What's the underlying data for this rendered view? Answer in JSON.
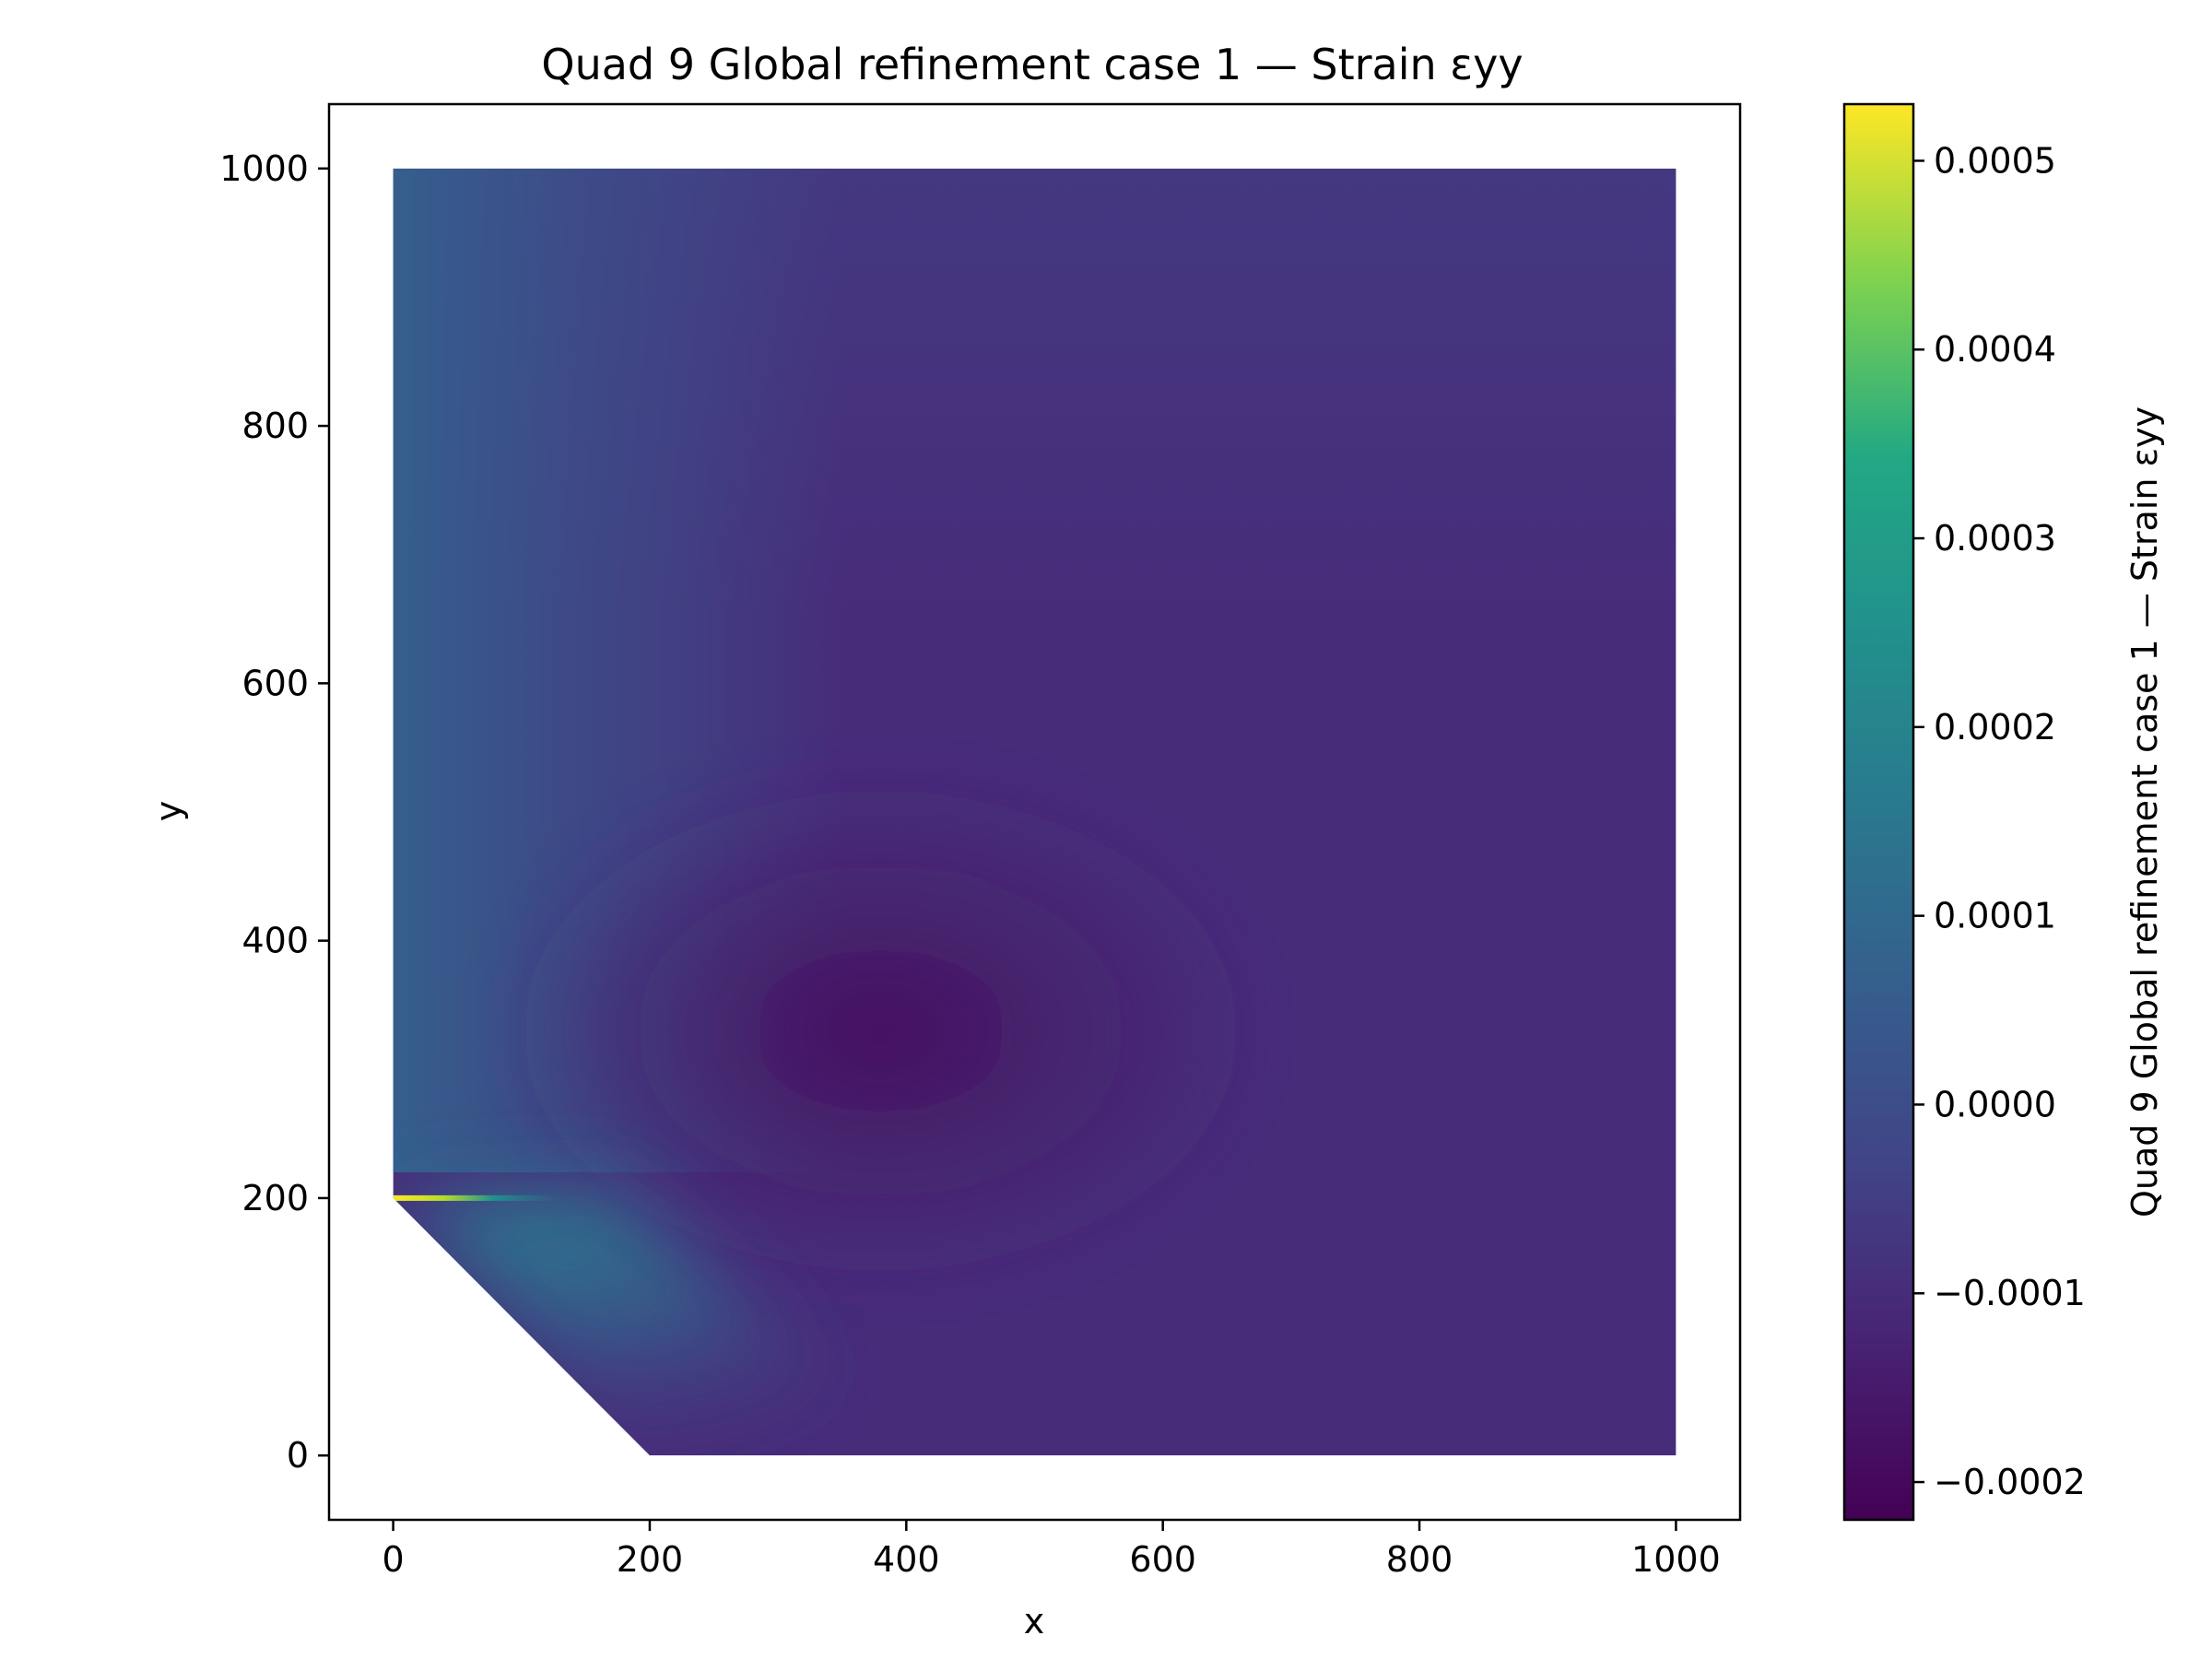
{
  "chart_data": {
    "type": "heatmap",
    "title": "Quad 9 Global refinement case 1 — Strain εyy",
    "xlabel": "x",
    "ylabel": "y",
    "xlim": [
      -50,
      1050
    ],
    "ylim": [
      -50,
      1050
    ],
    "x_ticks": [
      0,
      200,
      400,
      600,
      800,
      1000
    ],
    "y_ticks": [
      0,
      200,
      400,
      600,
      800,
      1000
    ],
    "x_tick_labels": [
      "0",
      "200",
      "400",
      "600",
      "800",
      "1000"
    ],
    "y_tick_labels": [
      "0",
      "200",
      "400",
      "600",
      "800",
      "1000"
    ],
    "domain_polygon": [
      [
        0,
        200
      ],
      [
        200,
        0
      ],
      [
        1000,
        0
      ],
      [
        1000,
        1000
      ],
      [
        0,
        1000
      ]
    ],
    "crack": {
      "x_start": 0,
      "x_end": 130,
      "y": 200
    },
    "colormap": "viridis",
    "colorbar": {
      "label": "Quad 9 Global refinement case 1 — Strain εyy",
      "range": [
        -0.00022,
        0.00053
      ],
      "ticks": [
        0.0005,
        0.0004,
        0.0003,
        0.0002,
        0.0001,
        0.0,
        -0.0001,
        -0.0002
      ],
      "tick_labels": [
        "0.0005",
        "0.0004",
        "0.0003",
        "0.0002",
        "0.0001",
        "0.0000",
        "−0.0001",
        "−0.0002"
      ]
    },
    "field_samples": [
      {
        "x": 0,
        "y": 900,
        "value": -3e-05
      },
      {
        "x": 0,
        "y": 500,
        "value": -3e-05
      },
      {
        "x": 50,
        "y": 100,
        "value": 7e-05
      },
      {
        "x": 150,
        "y": 220,
        "value": -0.0002
      },
      {
        "x": 300,
        "y": 280,
        "value": -0.0002
      },
      {
        "x": 450,
        "y": 400,
        "value": -0.00018
      },
      {
        "x": 500,
        "y": 800,
        "value": -0.00012
      },
      {
        "x": 900,
        "y": 500,
        "value": -0.00013
      },
      {
        "x": 600,
        "y": 50,
        "value": -9e-05
      },
      {
        "x": 1000,
        "y": 100,
        "value": -0.0001
      },
      {
        "x": 30,
        "y": 200,
        "value": 0.0005
      }
    ],
    "grid": false,
    "legend": "none"
  }
}
